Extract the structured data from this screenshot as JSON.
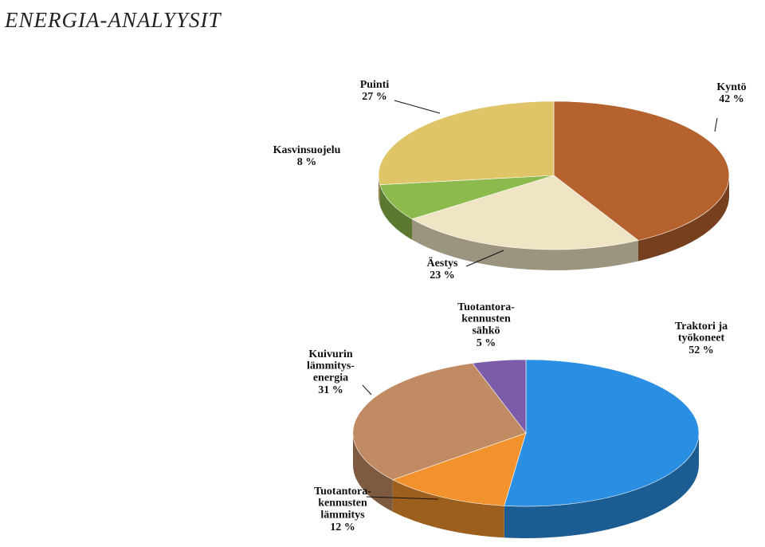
{
  "title": "ENERGIA-ANALYYSIT",
  "chart_data": [
    {
      "type": "pie",
      "categories": [
        "Kyntö",
        "Äestys",
        "Kasvinsuojelu",
        "Puinti"
      ],
      "values": [
        42,
        23,
        8,
        27
      ],
      "value_labels": [
        "42 %",
        "23 %",
        "8 %",
        "27 %"
      ],
      "colors": [
        "#b5622f",
        "#efe4c4",
        "#8cba4c",
        "#e0c468"
      ]
    },
    {
      "type": "pie",
      "categories": [
        "Traktori ja\ntyökoneet",
        "Tuotantora-\nkennusten\nlämmitys",
        "Kuivurin\nlämmitys-\nenergia",
        "Tuotantora-\nkennusten\nsähkö"
      ],
      "values": [
        52,
        12,
        31,
        5
      ],
      "value_labels": [
        "52 %",
        "12 %",
        "31 %",
        "5 %"
      ],
      "colors": [
        "#2a8fe2",
        "#f2922c",
        "#c08a62",
        "#7b5ca8"
      ]
    }
  ]
}
